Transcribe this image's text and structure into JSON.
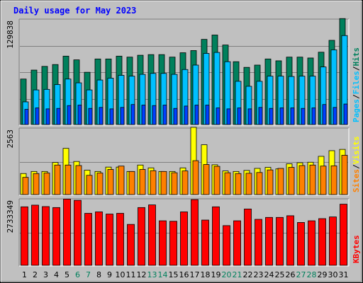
{
  "title": "Daily usage for May 2023",
  "colors": {
    "background": "#c0c0c0",
    "title": "#0000ff",
    "hits": "#00805c",
    "files": "#00c0ff",
    "pages": "#0040ff",
    "visits": "#ffff00",
    "sites": "#ff8000",
    "kbytes": "#ff0000",
    "weekend_label": "#00805c",
    "weekday_label": "#000000"
  },
  "chart_data": [
    {
      "type": "bar",
      "panel": "hits-files-pages",
      "ylabel_max": "129838",
      "ylim": [
        0,
        129838
      ],
      "x": [
        1,
        2,
        3,
        4,
        5,
        6,
        7,
        8,
        9,
        10,
        11,
        12,
        13,
        14,
        15,
        16,
        17,
        18,
        19,
        20,
        21,
        22,
        23,
        24,
        25,
        26,
        27,
        28,
        29,
        30,
        31
      ],
      "weekend_days": [
        6,
        7,
        13,
        14,
        20,
        21,
        27,
        28
      ],
      "legend": [
        "Pages",
        "/",
        "Files",
        "/",
        "Hits"
      ],
      "series": [
        {
          "name": "Hits",
          "values": [
            56400,
            67500,
            72100,
            74400,
            84800,
            80200,
            64800,
            81300,
            81300,
            84800,
            83600,
            85900,
            86700,
            86700,
            83600,
            89000,
            91700,
            105600,
            111000,
            98600,
            77900,
            70900,
            73700,
            81300,
            79000,
            83600,
            83600,
            82500,
            89700,
            104400,
            131400
          ]
        },
        {
          "name": "Files",
          "values": [
            28100,
            42900,
            43600,
            49600,
            56400,
            51700,
            42900,
            55200,
            57500,
            61000,
            60000,
            62200,
            63400,
            63400,
            62200,
            68200,
            73700,
            88200,
            89400,
            77900,
            53600,
            47400,
            53600,
            60000,
            60000,
            59600,
            60000,
            60000,
            71400,
            92600,
            110300
          ]
        },
        {
          "name": "Pages",
          "values": [
            18800,
            20600,
            19400,
            20000,
            23500,
            24100,
            20000,
            21200,
            19400,
            21200,
            24800,
            24100,
            23500,
            24100,
            20000,
            22900,
            24100,
            24100,
            20600,
            19400,
            20600,
            19400,
            21200,
            20000,
            20600,
            20600,
            20000,
            20600,
            24800,
            21200,
            25400
          ]
        }
      ]
    },
    {
      "type": "bar",
      "panel": "visits-sites",
      "ylabel_max": "2563",
      "ylim": [
        0,
        2563
      ],
      "x": [
        1,
        2,
        3,
        4,
        5,
        6,
        7,
        8,
        9,
        10,
        11,
        12,
        13,
        14,
        15,
        16,
        17,
        18,
        19,
        20,
        21,
        22,
        23,
        24,
        25,
        26,
        27,
        28,
        29,
        30,
        31
      ],
      "legend": [
        "Sites",
        "/",
        "Visits"
      ],
      "series": [
        {
          "name": "Visits",
          "values": [
            820,
            900,
            900,
            1250,
            1800,
            1290,
            950,
            900,
            1070,
            1070,
            900,
            1150,
            1040,
            900,
            900,
            1040,
            2620,
            1940,
            1160,
            920,
            900,
            940,
            1020,
            1060,
            1000,
            1200,
            1240,
            1260,
            1490,
            1710,
            1760
          ]
        },
        {
          "name": "Sites",
          "values": [
            670,
            820,
            840,
            1150,
            1150,
            1130,
            750,
            840,
            980,
            1110,
            900,
            980,
            930,
            900,
            850,
            920,
            1320,
            1170,
            1100,
            850,
            820,
            830,
            860,
            960,
            1020,
            1060,
            1130,
            1150,
            1110,
            1120,
            1530
          ]
        }
      ]
    },
    {
      "type": "bar",
      "panel": "kbytes",
      "ylabel_max": "2733349",
      "ylim": [
        0,
        2733349
      ],
      "x": [
        1,
        2,
        3,
        4,
        5,
        6,
        7,
        8,
        9,
        10,
        11,
        12,
        13,
        14,
        15,
        16,
        17,
        18,
        19,
        20,
        21,
        22,
        23,
        24,
        25,
        26,
        27,
        28,
        29,
        30,
        31
      ],
      "legend": [
        "KBytes"
      ],
      "series": [
        {
          "name": "KBytes",
          "values": [
            2430000,
            2500000,
            2440000,
            2400000,
            2750000,
            2700000,
            2160000,
            2220000,
            2130000,
            2160000,
            1700000,
            2400000,
            2510000,
            1850000,
            1830000,
            2220000,
            2730000,
            1880000,
            2430000,
            1650000,
            1850000,
            2340000,
            1910000,
            1990000,
            1990000,
            2060000,
            1780000,
            1850000,
            1940000,
            2010000,
            2540000
          ]
        }
      ]
    }
  ]
}
